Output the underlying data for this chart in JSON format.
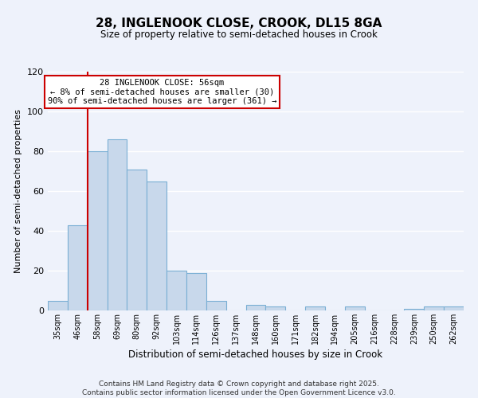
{
  "title": "28, INGLENOOK CLOSE, CROOK, DL15 8GA",
  "subtitle": "Size of property relative to semi-detached houses in Crook",
  "xlabel": "Distribution of semi-detached houses by size in Crook",
  "ylabel": "Number of semi-detached properties",
  "bin_labels": [
    "35sqm",
    "46sqm",
    "58sqm",
    "69sqm",
    "80sqm",
    "92sqm",
    "103sqm",
    "114sqm",
    "126sqm",
    "137sqm",
    "148sqm",
    "160sqm",
    "171sqm",
    "182sqm",
    "194sqm",
    "205sqm",
    "216sqm",
    "228sqm",
    "239sqm",
    "250sqm",
    "262sqm"
  ],
  "bar_values": [
    5,
    43,
    80,
    86,
    71,
    65,
    20,
    19,
    5,
    0,
    3,
    2,
    0,
    2,
    0,
    2,
    0,
    0,
    1,
    2,
    2
  ],
  "bar_color": "#c8d8eb",
  "bar_edge_color": "#7aafd4",
  "vline_color": "#cc0000",
  "ylim": [
    0,
    120
  ],
  "yticks": [
    0,
    20,
    40,
    60,
    80,
    100,
    120
  ],
  "annotation_title": "28 INGLENOOK CLOSE: 56sqm",
  "annotation_line1": "← 8% of semi-detached houses are smaller (30)",
  "annotation_line2": "90% of semi-detached houses are larger (361) →",
  "annotation_box_color": "#ffffff",
  "annotation_box_edge": "#cc0000",
  "footer_line1": "Contains HM Land Registry data © Crown copyright and database right 2025.",
  "footer_line2": "Contains public sector information licensed under the Open Government Licence v3.0.",
  "background_color": "#eef2fb",
  "grid_color": "#ffffff"
}
